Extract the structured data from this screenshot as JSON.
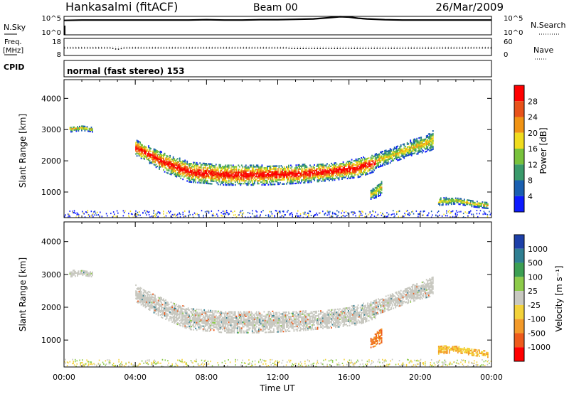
{
  "header": {
    "station": "Hankasalmi (fitACF)",
    "beam": "Beam 00",
    "date": "26/Mar/2009"
  },
  "noise_panel": {
    "left_label": "N.Sky",
    "right_label": "N.Search",
    "left_ticks": [
      "10^5",
      "10^0"
    ],
    "right_ticks": [
      "10^5",
      "10^0"
    ],
    "series": [
      {
        "name": "N.Sky",
        "style": "solid",
        "x": [
          0,
          1,
          2,
          3,
          4,
          5,
          6,
          7,
          8,
          9,
          10,
          11,
          12,
          13,
          14,
          14.5,
          15,
          15.5,
          16,
          16.5,
          17,
          18,
          19,
          20,
          21,
          22,
          23,
          24
        ],
        "y": [
          3.9,
          4.0,
          4.0,
          4.0,
          4.0,
          4.0,
          4.0,
          4.0,
          4.1,
          4.0,
          4.0,
          4.1,
          4.1,
          4.2,
          4.3,
          4.5,
          4.7,
          4.9,
          4.8,
          4.5,
          4.3,
          4.1,
          4.0,
          4.0,
          4.0,
          4.0,
          4.0,
          4.0
        ]
      }
    ]
  },
  "freq_panel": {
    "left_label": "Freq.",
    "unit": "[MHz]",
    "right_label": "Nave",
    "left_ticks": [
      "18",
      "8"
    ],
    "right_ticks": [
      "60",
      "0"
    ],
    "cpid_label": "CPID",
    "cpid_text": "normal (fast stereo) 153",
    "freq": {
      "x": [
        0,
        2.6,
        3.0,
        3.4,
        12.5,
        12.8,
        24
      ],
      "y": [
        12.4,
        12.4,
        11.6,
        12.4,
        12.4,
        12.1,
        12.4
      ]
    },
    "nave": {
      "x": [
        0,
        24
      ],
      "y": [
        30,
        30
      ]
    }
  },
  "power_panel": {
    "ylabel": "Slant Range [km]",
    "yticks": [
      "1000",
      "2000",
      "3000",
      "4000"
    ],
    "colorbar_label": "Power [dB]",
    "colorbar_ticks": [
      "4",
      "8",
      "12",
      "16",
      "20",
      "24",
      "28"
    ],
    "colors": [
      "#0d1bff",
      "#1a5fb0",
      "#3a9a6b",
      "#78c23c",
      "#f0dc1e",
      "#f09314",
      "#e8521a",
      "#ff0000"
    ]
  },
  "velocity_panel": {
    "ylabel": "Slant Range [km]",
    "yticks": [
      "1000",
      "2000",
      "3000",
      "4000"
    ],
    "colorbar_label": "Velocity [m s⁻¹]",
    "colorbar_ticks": [
      "1000",
      "500",
      "100",
      "25",
      "-25",
      "-100",
      "-500",
      "-1000"
    ],
    "colors": [
      "#1c3fa8",
      "#2f7f92",
      "#3c9f53",
      "#8dcb4a",
      "#c8c8c0",
      "#f3d23a",
      "#f39a2a",
      "#ee5b1c",
      "#ff0000"
    ]
  },
  "time_axis": {
    "xlabel": "Time UT",
    "ticks": [
      "00:00",
      "04:00",
      "08:00",
      "12:00",
      "16:00",
      "20:00",
      "00:00"
    ]
  },
  "chart_data": {
    "type": "heatmap",
    "x_range_hours": [
      0,
      24
    ],
    "y_range_km": [
      180,
      4600
    ],
    "echo_regions": [
      {
        "name": "main band",
        "x": [
          4.0,
          5.5,
          7.0,
          9.0,
          11.0,
          13.0,
          15.0,
          16.5,
          17.5
        ],
        "y_low": [
          2200,
          1700,
          1350,
          1250,
          1250,
          1300,
          1400,
          1500,
          1700
        ],
        "y_high": [
          2700,
          2300,
          2000,
          1900,
          1900,
          1900,
          1950,
          2100,
          2250
        ]
      },
      {
        "name": "east extension",
        "x": [
          17.5,
          18.5,
          19.5,
          20.5,
          20.7
        ],
        "y_low": [
          1800,
          2000,
          2200,
          2350,
          2400
        ],
        "y_high": [
          2250,
          2450,
          2700,
          2900,
          3000
        ]
      },
      {
        "name": "early patch",
        "x": [
          0.3,
          1.0,
          1.6
        ],
        "y_low": [
          2950,
          3000,
          2950
        ],
        "y_high": [
          3150,
          3150,
          3100
        ]
      },
      {
        "name": "17-18 UT patch",
        "x": [
          17.2,
          17.5,
          17.8
        ],
        "y_low": [
          800,
          850,
          950
        ],
        "y_high": [
          1100,
          1250,
          1400
        ]
      },
      {
        "name": "late low patch",
        "x": [
          21.0,
          22.0,
          23.0,
          23.8
        ],
        "y_low": [
          600,
          650,
          550,
          500
        ],
        "y_high": [
          850,
          850,
          750,
          700
        ]
      }
    ]
  }
}
